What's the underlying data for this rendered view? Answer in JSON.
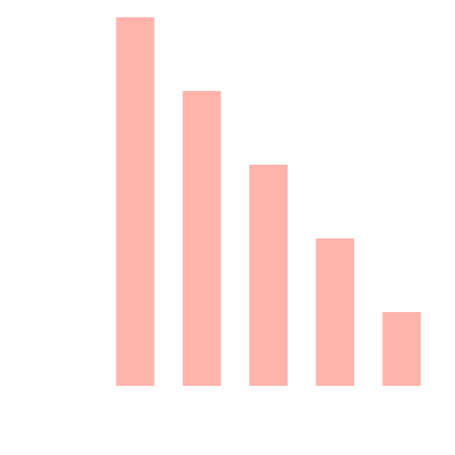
{
  "chart_data": {
    "type": "bar",
    "categories": [
      "",
      "",
      "",
      "",
      ""
    ],
    "values": [
      100,
      80,
      60,
      40,
      20
    ],
    "title": "",
    "xlabel": "",
    "ylabel": "",
    "ylim": [
      0,
      100
    ],
    "grid": false,
    "legend": "none",
    "bar_color": "#ffb3ab"
  }
}
